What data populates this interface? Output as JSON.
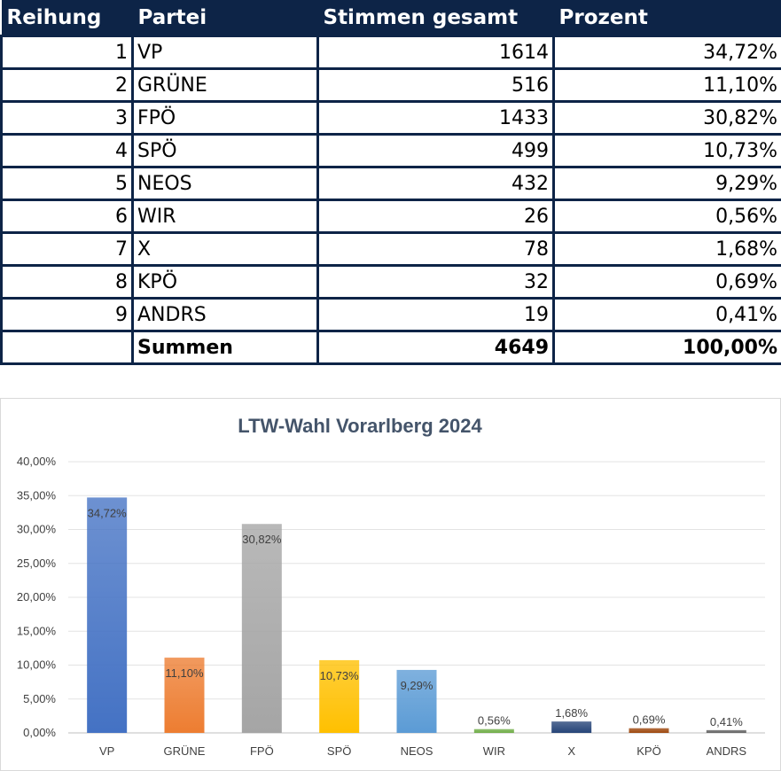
{
  "table": {
    "headers": [
      "Reihung",
      "Partei",
      "Stimmen gesamt",
      "Prozent"
    ],
    "rows": [
      {
        "rank": "1",
        "party": "VP",
        "votes": "1614",
        "percent": "34,72%"
      },
      {
        "rank": "2",
        "party": "GRÜNE",
        "votes": "516",
        "percent": "11,10%"
      },
      {
        "rank": "3",
        "party": "FPÖ",
        "votes": "1433",
        "percent": "30,82%"
      },
      {
        "rank": "4",
        "party": "SPÖ",
        "votes": "499",
        "percent": "10,73%"
      },
      {
        "rank": "5",
        "party": "NEOS",
        "votes": "432",
        "percent": "9,29%"
      },
      {
        "rank": "6",
        "party": "WIR",
        "votes": "26",
        "percent": "0,56%"
      },
      {
        "rank": "7",
        "party": "X",
        "votes": "78",
        "percent": "1,68%"
      },
      {
        "rank": "8",
        "party": "KPÖ",
        "votes": "32",
        "percent": "0,69%"
      },
      {
        "rank": "9",
        "party": "ANDRS",
        "votes": "19",
        "percent": "0,41%"
      }
    ],
    "total": {
      "label": "Summen",
      "votes": "4649",
      "percent": "100,00%"
    }
  },
  "chart_data": {
    "type": "bar",
    "title": "LTW-Wahl Vorarlberg 2024",
    "xlabel": "",
    "ylabel": "",
    "categories": [
      "VP",
      "GRÜNE",
      "FPÖ",
      "SPÖ",
      "NEOS",
      "WIR",
      "X",
      "KPÖ",
      "ANDRS"
    ],
    "values": [
      34.72,
      11.1,
      30.82,
      10.73,
      9.29,
      0.56,
      1.68,
      0.69,
      0.41
    ],
    "data_labels": [
      "34,72%",
      "11,10%",
      "30,82%",
      "10,73%",
      "9,29%",
      "0,56%",
      "1,68%",
      "0,69%",
      "0,41%"
    ],
    "colors": [
      "#4472c4",
      "#ed7d31",
      "#a5a5a5",
      "#ffc000",
      "#5b9bd5",
      "#70ad47",
      "#264478",
      "#9e480e",
      "#636363"
    ],
    "ylim": [
      0,
      40
    ],
    "yticks": [
      0,
      5,
      10,
      15,
      20,
      25,
      30,
      35,
      40
    ],
    "ytick_labels": [
      "0,00%",
      "5,00%",
      "10,00%",
      "15,00%",
      "20,00%",
      "25,00%",
      "30,00%",
      "35,00%",
      "40,00%"
    ],
    "grid": true,
    "legend": "none"
  }
}
